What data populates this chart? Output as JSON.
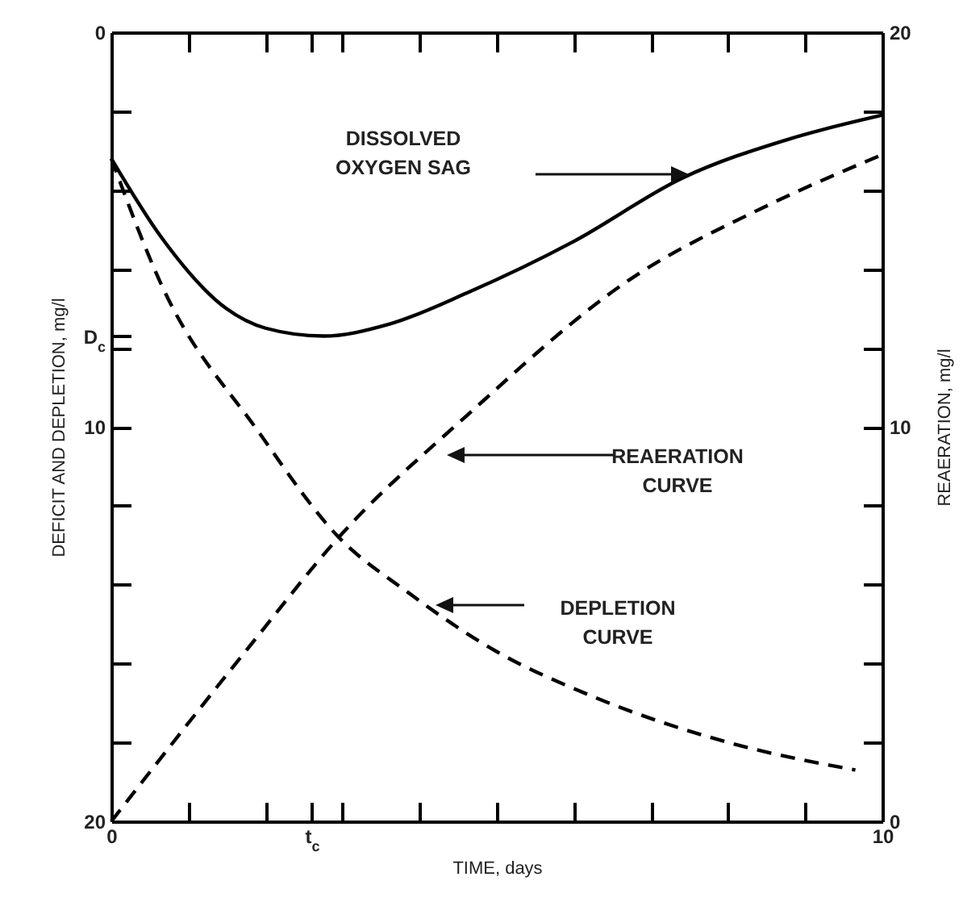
{
  "chart_data": {
    "type": "line",
    "xlabel": "TIME, days",
    "ylabel": "DEFICIT AND DEPLETION, mg/l",
    "y2label": "REAERATION, mg/l",
    "xlim": [
      0,
      10
    ],
    "ylim": [
      20,
      0
    ],
    "y2lim": [
      0,
      20
    ],
    "xticks": [
      0,
      {
        "value": 1,
        "label": null
      },
      {
        "value": 2,
        "label": null
      },
      {
        "value": 2.6,
        "label": "t$_{c}$"
      },
      {
        "value": 3,
        "label": null
      },
      {
        "value": 4,
        "label": null
      },
      {
        "value": 5,
        "label": null
      },
      {
        "value": 6,
        "label": null
      },
      {
        "value": 7,
        "label": null
      },
      {
        "value": 8,
        "label": null
      },
      {
        "value": 9,
        "label": null
      },
      10
    ],
    "yticks": [
      0,
      {
        "value": 2,
        "label": null
      },
      {
        "value": 4,
        "label": null
      },
      {
        "value": 6,
        "label": null
      },
      {
        "value": 7.7,
        "label": "D$_{c}$"
      },
      {
        "value": 8,
        "label": null
      },
      10,
      {
        "value": 12,
        "label": null
      },
      {
        "value": 14,
        "label": null
      },
      {
        "value": 16,
        "label": null
      },
      {
        "value": 18,
        "label": null
      },
      20
    ],
    "y2ticks": [
      0,
      {
        "value": 2,
        "label": null
      },
      {
        "value": 4,
        "label": null
      },
      {
        "value": 6,
        "label": null
      },
      {
        "value": 8,
        "label": null
      },
      10,
      {
        "value": 12,
        "label": null
      },
      {
        "value": 14,
        "label": null
      },
      {
        "value": 16,
        "label": null
      },
      {
        "value": 18,
        "label": null
      },
      20
    ],
    "tick_labels": "xy",
    "series": [
      {
        "color": "#000000",
        "line_style": "solid",
        "x": [
          0,
          0.65,
          1.49,
          2.0,
          2.75,
          3.6,
          4.62,
          6.0,
          7.4,
          8.8,
          10
        ],
        "values": [
          3.2,
          5.2,
          7.0,
          7.5,
          7.7,
          7.4,
          6.6,
          5.3,
          3.7,
          2.7,
          2.1
        ]
      },
      {
        "color": "#000000",
        "line_style": "dashed",
        "x": [
          0,
          0.65,
          1.9,
          2.95,
          3.85,
          5,
          6.2,
          8.0,
          9.65
        ],
        "values": [
          3.2,
          6.4,
          10.1,
          12.8,
          14.2,
          15.7,
          16.8,
          18.0,
          18.7
        ]
      },
      {
        "color": "#000000",
        "line_style": "dashed",
        "axis": "y2",
        "x": [
          0,
          1.84,
          2.95,
          4.62,
          6.7,
          8.5,
          10
        ],
        "values": [
          0,
          4.55,
          7.2,
          10.3,
          13.7,
          15.6,
          16.9
        ]
      }
    ],
    "annotations": [
      "DISSOLVED\nOXYGEN SAG",
      "REAERATION\nCURVE",
      "DEPLETION\nCURVE"
    ]
  }
}
